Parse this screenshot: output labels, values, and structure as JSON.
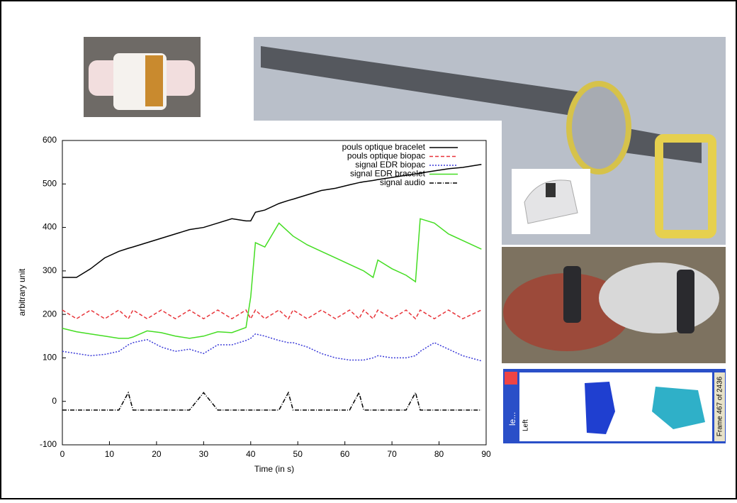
{
  "chart_data": {
    "type": "line",
    "x_label": "Time (in s)",
    "y_label": "arbitrary unit",
    "x": [
      0,
      3,
      6,
      9,
      12,
      14,
      15,
      18,
      21,
      24,
      27,
      30,
      33,
      36,
      39,
      40,
      41,
      43,
      46,
      48,
      49,
      52,
      55,
      58,
      61,
      63,
      64,
      66,
      67,
      70,
      73,
      75,
      76,
      79,
      82,
      85,
      89
    ],
    "series": [
      {
        "name": "pouls optique bracelet",
        "color": "#000000",
        "dash": "solid",
        "values": [
          285,
          285,
          305,
          330,
          345,
          352,
          355,
          365,
          375,
          385,
          395,
          400,
          410,
          420,
          415,
          415,
          435,
          440,
          455,
          462,
          465,
          475,
          485,
          490,
          498,
          503,
          505,
          508,
          510,
          515,
          520,
          523,
          525,
          530,
          535,
          538,
          545
        ]
      },
      {
        "name": "pouls optique biopac",
        "color": "#e8343a",
        "dash": "dashed",
        "values": [
          210,
          190,
          210,
          190,
          210,
          190,
          210,
          190,
          210,
          190,
          210,
          190,
          210,
          190,
          210,
          190,
          210,
          190,
          210,
          190,
          210,
          190,
          210,
          190,
          210,
          190,
          210,
          190,
          210,
          190,
          210,
          190,
          210,
          190,
          210,
          190,
          210
        ]
      },
      {
        "name": "signal EDR biopac",
        "color": "#3a3ad8",
        "dash": "dotted",
        "values": [
          115,
          110,
          105,
          108,
          115,
          130,
          135,
          142,
          125,
          115,
          120,
          110,
          130,
          130,
          140,
          145,
          155,
          150,
          140,
          135,
          135,
          125,
          110,
          100,
          95,
          95,
          95,
          100,
          105,
          100,
          100,
          105,
          115,
          135,
          120,
          105,
          93
        ]
      },
      {
        "name": "signal EDR bracelet",
        "color": "#44dd22",
        "dash": "solid",
        "values": [
          168,
          160,
          155,
          150,
          145,
          145,
          148,
          162,
          158,
          150,
          145,
          150,
          160,
          158,
          170,
          240,
          365,
          355,
          410,
          390,
          380,
          360,
          345,
          330,
          315,
          305,
          300,
          285,
          325,
          305,
          290,
          275,
          420,
          410,
          385,
          370,
          350
        ]
      },
      {
        "name": "signal audio",
        "color": "#000000",
        "dash": "dashdot",
        "values": [
          -20,
          -20,
          -20,
          -20,
          -20,
          20,
          -20,
          -20,
          -20,
          -20,
          -20,
          20,
          -20,
          -20,
          -20,
          -20,
          -20,
          -20,
          -20,
          20,
          -20,
          -20,
          -20,
          -20,
          -20,
          20,
          -20,
          -20,
          -20,
          -20,
          -20,
          20,
          -20,
          -20,
          -20,
          -20,
          -20
        ]
      }
    ],
    "xlim": [
      0,
      90
    ],
    "xticks": [
      0,
      10,
      20,
      30,
      40,
      50,
      60,
      70,
      80,
      90
    ],
    "ylim": [
      -100,
      600
    ],
    "yticks": [
      -100,
      0,
      100,
      200,
      300,
      400,
      500,
      600
    ],
    "grid": false,
    "legend": "top-right"
  },
  "pressure_map": {
    "window_title": "le...",
    "side_label": "Left",
    "frame_label": "Frame 467 of 2436"
  }
}
